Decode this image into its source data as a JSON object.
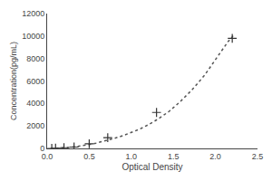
{
  "chart_data": {
    "type": "scatter",
    "xlabel": "Optical Density",
    "ylabel": "Concentration(pg/mL)",
    "xlim": [
      0,
      2.5
    ],
    "ylim": [
      0,
      12000
    ],
    "xticks": [
      {
        "value": 0,
        "label": "0.0"
      },
      0.5,
      {
        "value": 1,
        "label": "1.0"
      },
      1.5,
      {
        "value": 2,
        "label": "2.0"
      },
      2.5
    ],
    "yticks": [
      0,
      2000,
      4000,
      6000,
      8000,
      10000,
      12000
    ],
    "grid": false,
    "series": [
      {
        "type": "line",
        "line_style": "dotted",
        "color": "#555555",
        "x": [
          0.04,
          0.08,
          0.12,
          0.16,
          0.2,
          0.25,
          0.3,
          0.35,
          0.4,
          0.46,
          0.52,
          0.58,
          0.65,
          0.72,
          0.8,
          0.9,
          1.0,
          1.1,
          1.2,
          1.32,
          1.45,
          1.58,
          1.72,
          1.87,
          2.0,
          2.15,
          2.22
        ],
        "values": [
          2,
          8,
          18,
          32,
          52,
          82,
          118,
          162,
          215,
          285,
          370,
          470,
          590,
          730,
          900,
          1130,
          1400,
          1720,
          2100,
          2620,
          3300,
          4150,
          5200,
          6500,
          7900,
          9500,
          10100
        ]
      },
      {
        "type": "scatter",
        "marker": "plus",
        "color": "#333333",
        "x": [
          0.055,
          0.1,
          0.2,
          0.32,
          0.5,
          0.72,
          1.3,
          2.2
        ],
        "values": [
          0,
          20,
          60,
          120,
          420,
          950,
          3200,
          9800
        ]
      }
    ]
  }
}
